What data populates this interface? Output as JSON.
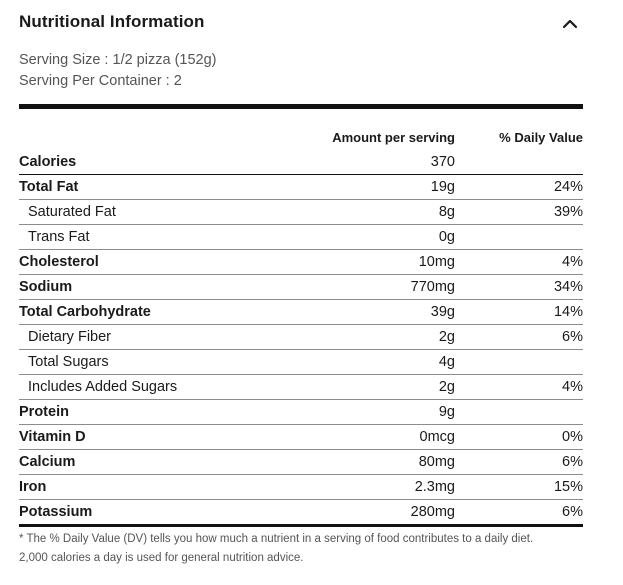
{
  "header": {
    "title": "Nutritional Information",
    "toggle_icon": "chevron-up-icon"
  },
  "serving": {
    "size_label": "Serving Size :",
    "size_value": "1/2 pizza (152g)",
    "per_container_label": "Serving Per Container :",
    "per_container_value": "2"
  },
  "table": {
    "col_amount": "Amount per serving",
    "col_dv": "% Daily Value",
    "rows": [
      {
        "name": "Calories",
        "amount": "370",
        "dv": "",
        "bold": true,
        "sub": false
      },
      {
        "name": "Total Fat",
        "amount": "19g",
        "dv": "24%",
        "bold": true,
        "sub": false
      },
      {
        "name": "Saturated Fat",
        "amount": "8g",
        "dv": "39%",
        "bold": false,
        "sub": true
      },
      {
        "name": "Trans Fat",
        "amount": "0g",
        "dv": "",
        "bold": false,
        "sub": true
      },
      {
        "name": "Cholesterol",
        "amount": "10mg",
        "dv": "4%",
        "bold": true,
        "sub": false
      },
      {
        "name": "Sodium",
        "amount": "770mg",
        "dv": "34%",
        "bold": true,
        "sub": false
      },
      {
        "name": "Total Carbohydrate",
        "amount": "39g",
        "dv": "14%",
        "bold": true,
        "sub": false
      },
      {
        "name": "Dietary Fiber",
        "amount": "2g",
        "dv": "6%",
        "bold": false,
        "sub": true
      },
      {
        "name": "Total Sugars",
        "amount": "4g",
        "dv": "",
        "bold": false,
        "sub": true
      },
      {
        "name": "Includes Added Sugars",
        "amount": "2g",
        "dv": "4%",
        "bold": false,
        "sub": true
      },
      {
        "name": "Protein",
        "amount": "9g",
        "dv": "",
        "bold": true,
        "sub": false
      },
      {
        "name": "Vitamin D",
        "amount": "0mcg",
        "dv": "0%",
        "bold": true,
        "sub": false
      },
      {
        "name": "Calcium",
        "amount": "80mg",
        "dv": "6%",
        "bold": true,
        "sub": false
      },
      {
        "name": "Iron",
        "amount": "2.3mg",
        "dv": "15%",
        "bold": true,
        "sub": false
      },
      {
        "name": "Potassium",
        "amount": "280mg",
        "dv": "6%",
        "bold": true,
        "sub": false
      }
    ]
  },
  "footnote": {
    "line1": "* The % Daily Value (DV) tells you how much a nutrient in a serving of food contributes to a daily diet.",
    "line2": "2,000 calories a day is used for general nutrition advice."
  }
}
